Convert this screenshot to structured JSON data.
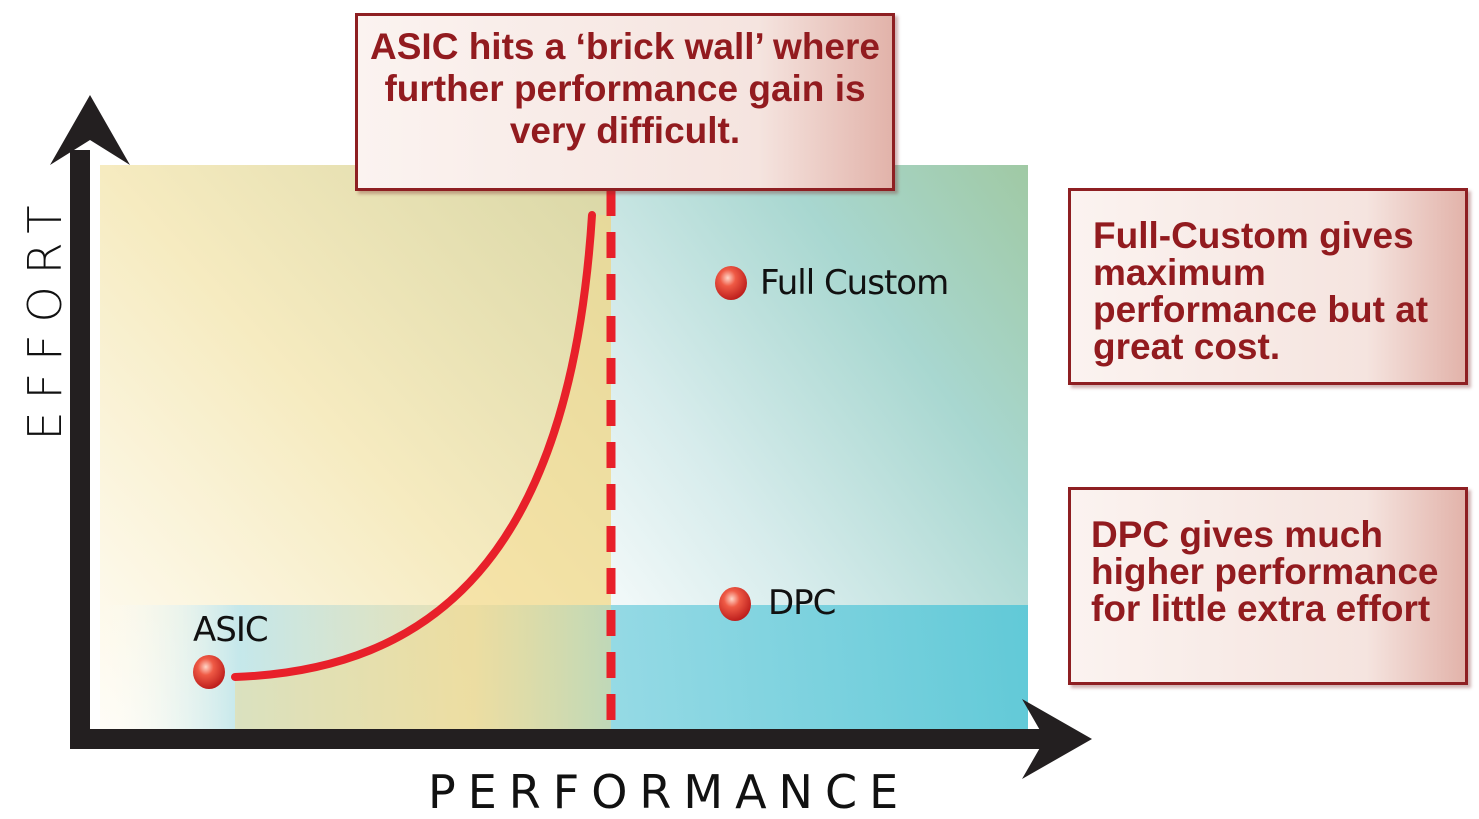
{
  "axes": {
    "y_label": "EFFORT",
    "x_label": "PERFORMANCE"
  },
  "points": [
    {
      "label": "ASIC"
    },
    {
      "label": "Full Custom"
    },
    {
      "label": "DPC"
    }
  ],
  "callouts": {
    "top": "ASIC hits a ‘brick wall’ where further performance gain is very difficult.",
    "full_custom": "Full-Custom gives maximum performance but at great cost.",
    "dpc": "DPC gives much higher performance for little extra effort"
  },
  "colors": {
    "curve": "#e8202a",
    "callout_text": "#921b1f",
    "callout_border": "#8e1f22",
    "band": "#5bc8d8",
    "warm": "#f3d98a"
  }
}
